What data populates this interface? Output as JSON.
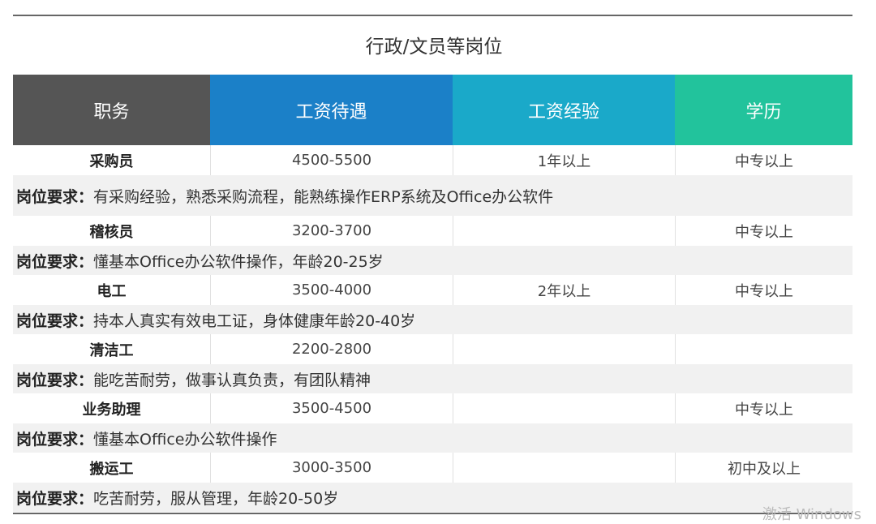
{
  "title": "行政/文员等岗位",
  "headers": [
    "职务",
    "工资待遇",
    "工资经验",
    "学历"
  ],
  "header_colors": [
    "#555555",
    "#1b80c8",
    "#1aa9c9",
    "#22c39c"
  ],
  "req_label": "岗位要求：",
  "rows": [
    {
      "job": "采购员",
      "salary": "4500-5500",
      "experience": "1年以上",
      "education": "中专以上",
      "requirement": "有采购经验，熟悉采购流程，能熟练操作ERP系统及Office办公软件"
    },
    {
      "job": "稽核员",
      "salary": "3200-3700",
      "experience": "",
      "education": "中专以上",
      "requirement": "懂基本Office办公软件操作，年龄20-25岁"
    },
    {
      "job": "电工",
      "salary": "3500-4000",
      "experience": "2年以上",
      "education": "中专以上",
      "requirement": "持本人真实有效电工证，身体健康年龄20-40岁"
    },
    {
      "job": "清洁工",
      "salary": "2200-2800",
      "experience": "",
      "education": "",
      "requirement": "能吃苦耐劳，做事认真负责，有团队精神"
    },
    {
      "job": "业务助理",
      "salary": "3500-4500",
      "experience": "",
      "education": "中专以上",
      "requirement": "懂基本Office办公软件操作"
    },
    {
      "job": "搬运工",
      "salary": "3000-3500",
      "experience": "",
      "education": "初中及以上",
      "requirement": "吃苦耐劳，服从管理，年龄20-50岁"
    }
  ],
  "watermark": "激活 Windows"
}
